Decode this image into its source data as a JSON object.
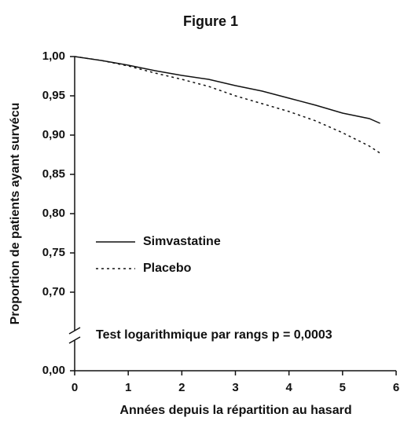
{
  "chart_data": {
    "type": "line",
    "title": "Figure 1",
    "x_label": "Années depuis la répartition au hasard",
    "y_label": "Proportion de patients ayant survécu",
    "annotation": "Test logarithmique par rangs  p = 0,0003",
    "x": [
      0,
      0.5,
      1,
      1.5,
      2,
      2.5,
      3,
      3.5,
      4,
      4.5,
      5,
      5.5,
      5.7
    ],
    "series": [
      {
        "name": "Simvastatine",
        "color": "#111111",
        "dash": "solid",
        "values": [
          1.0,
          0.995,
          0.989,
          0.982,
          0.976,
          0.971,
          0.963,
          0.956,
          0.947,
          0.938,
          0.928,
          0.921,
          0.915
        ]
      },
      {
        "name": "Placebo",
        "color": "#111111",
        "dash": "dotted",
        "values": [
          1.0,
          0.995,
          0.988,
          0.979,
          0.971,
          0.962,
          0.95,
          0.94,
          0.93,
          0.918,
          0.903,
          0.886,
          0.877
        ]
      }
    ],
    "xlim": [
      0,
      6
    ],
    "xticks": [
      0,
      1,
      2,
      3,
      4,
      5,
      6
    ],
    "ylim": [
      0,
      1
    ],
    "y_break": [
      0,
      0.7
    ],
    "yticks": [
      {
        "value": 0,
        "label": "0,00"
      },
      {
        "value": 0.7,
        "label": "0,70"
      },
      {
        "value": 0.75,
        "label": "0,75"
      },
      {
        "value": 0.8,
        "label": "0,80"
      },
      {
        "value": 0.85,
        "label": "0,85"
      },
      {
        "value": 0.9,
        "label": "0,90"
      },
      {
        "value": 0.95,
        "label": "0,95"
      },
      {
        "value": 1,
        "label": "1,00"
      }
    ]
  }
}
